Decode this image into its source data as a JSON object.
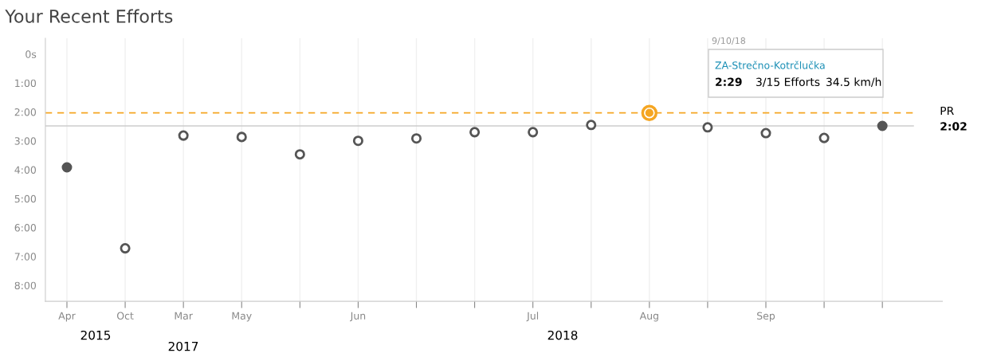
{
  "chart_data": {
    "type": "scatter",
    "title": "Your Recent Efforts",
    "categories": [
      "Apr",
      "Oct",
      "Mar",
      "May",
      null,
      "Jun",
      null,
      null,
      "Jul",
      null,
      "Aug",
      null,
      "Sep",
      null,
      null
    ],
    "series": [
      {
        "color": "#555555",
        "values": [
          null,
          403,
          169,
          172,
          208,
          180,
          175,
          162,
          162,
          147,
          null,
          152,
          164,
          174,
          null
        ]
      },
      {
        "color": "#555555",
        "values": [
          235,
          null,
          null,
          null,
          null,
          null,
          null,
          null,
          null,
          null,
          null,
          null,
          null,
          null,
          149
        ]
      },
      {
        "color": "#f5a623",
        "values": [
          null,
          null,
          null,
          null,
          null,
          null,
          null,
          null,
          null,
          null,
          122,
          null,
          null,
          null,
          null
        ]
      }
    ],
    "ylim": [
      513,
      -33
    ],
    "yticks": [
      {
        "value": 0,
        "label": "0s"
      },
      {
        "value": 60,
        "label": "1:00"
      },
      {
        "value": 120,
        "label": "2:00"
      },
      {
        "value": 180,
        "label": "3:00"
      },
      {
        "value": 240,
        "label": "4:00"
      },
      {
        "value": 300,
        "label": "5:00"
      },
      {
        "value": 360,
        "label": "6:00"
      },
      {
        "value": 420,
        "label": "7:00"
      },
      {
        "value": 480,
        "label": "8:00"
      }
    ],
    "ref_lines": [
      {
        "axis": "y",
        "value": 122,
        "label": "PR",
        "color": "#f5a623",
        "line_style": "dashed"
      },
      {
        "axis": "y",
        "value": 149,
        "color": "#cccccc"
      }
    ],
    "annotations": [
      "2015",
      "2017",
      "2018",
      "9/10/18",
      "ZA-Strečno-Kotrčlučka",
      "2:29",
      "3/15 Efforts",
      "34.5 km/h",
      "2:02"
    ],
    "grid": "x",
    "marker": "circle"
  }
}
